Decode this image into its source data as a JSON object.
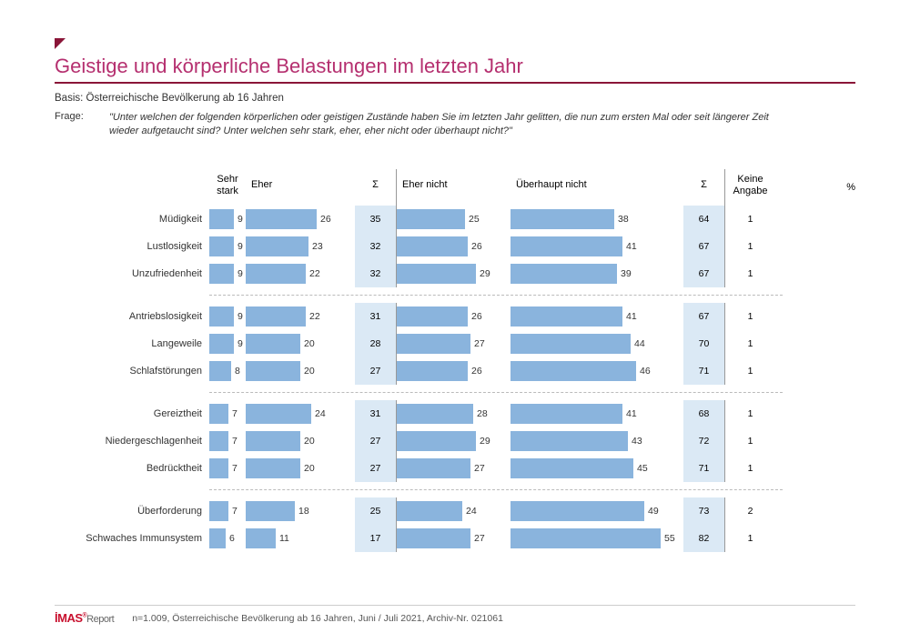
{
  "meta": {
    "title": "Geistige und körperliche Belastungen im letzten Jahr",
    "basis_label": "Basis:",
    "basis_text": "Österreichische Bevölkerung ab 16 Jahren",
    "frage_label": "Frage:",
    "frage_text": "\"Unter welchen der folgenden körperlichen oder geistigen Zustände haben Sie im letzten Jahr gelitten, die nun zum ersten Mal oder seit längerer Zeit wieder aufgetaucht sind? Unter welchen sehr stark, eher, eher nicht oder überhaupt nicht?\"",
    "pct_symbol": "%"
  },
  "columns": {
    "sehr_stark": "Sehr\nstark",
    "eher": "Eher",
    "sum": "Σ",
    "eher_nicht": "Eher nicht",
    "ueberhaupt_nicht": "Überhaupt nicht",
    "keine_angabe": "Keine\nAngabe"
  },
  "style": {
    "bar_color": "#8ab4dd",
    "sum_bg_color": "#dbe9f5",
    "title_color": "#b52f6f",
    "accent_color": "#8a1538",
    "text_color": "#333333",
    "bar_scale_left": 3.0,
    "bar_scale_right": 3.0,
    "max_sehr_stark": 10,
    "max_eher": 35,
    "max_eher_nicht": 35,
    "max_ueb_nicht": 60
  },
  "groups": [
    {
      "rows": [
        {
          "label": "Müdigkeit",
          "sehr_stark": 9,
          "eher": 26,
          "sum1": 35,
          "eher_nicht": 25,
          "ueb_nicht": 38,
          "sum2": 64,
          "keine": 1
        },
        {
          "label": "Lustlosigkeit",
          "sehr_stark": 9,
          "eher": 23,
          "sum1": 32,
          "eher_nicht": 26,
          "ueb_nicht": 41,
          "sum2": 67,
          "keine": 1
        },
        {
          "label": "Unzufriedenheit",
          "sehr_stark": 9,
          "eher": 22,
          "sum1": 32,
          "eher_nicht": 29,
          "ueb_nicht": 39,
          "sum2": 67,
          "keine": 1
        }
      ]
    },
    {
      "rows": [
        {
          "label": "Antriebslosigkeit",
          "sehr_stark": 9,
          "eher": 22,
          "sum1": 31,
          "eher_nicht": 26,
          "ueb_nicht": 41,
          "sum2": 67,
          "keine": 1
        },
        {
          "label": "Langeweile",
          "sehr_stark": 9,
          "eher": 20,
          "sum1": 28,
          "eher_nicht": 27,
          "ueb_nicht": 44,
          "sum2": 70,
          "keine": 1
        },
        {
          "label": "Schlafstörungen",
          "sehr_stark": 8,
          "eher": 20,
          "sum1": 27,
          "eher_nicht": 26,
          "ueb_nicht": 46,
          "sum2": 71,
          "keine": 1
        }
      ]
    },
    {
      "rows": [
        {
          "label": "Gereiztheit",
          "sehr_stark": 7,
          "eher": 24,
          "sum1": 31,
          "eher_nicht": 28,
          "ueb_nicht": 41,
          "sum2": 68,
          "keine": 1
        },
        {
          "label": "Niedergeschlagenheit",
          "sehr_stark": 7,
          "eher": 20,
          "sum1": 27,
          "eher_nicht": 29,
          "ueb_nicht": 43,
          "sum2": 72,
          "keine": 1
        },
        {
          "label": "Bedrücktheit",
          "sehr_stark": 7,
          "eher": 20,
          "sum1": 27,
          "eher_nicht": 27,
          "ueb_nicht": 45,
          "sum2": 71,
          "keine": 1
        }
      ]
    },
    {
      "rows": [
        {
          "label": "Überforderung",
          "sehr_stark": 7,
          "eher": 18,
          "sum1": 25,
          "eher_nicht": 24,
          "ueb_nicht": 49,
          "sum2": 73,
          "keine": 2
        },
        {
          "label": "Schwaches Immunsystem",
          "sehr_stark": 6,
          "eher": 11,
          "sum1": 17,
          "eher_nicht": 27,
          "ueb_nicht": 55,
          "sum2": 82,
          "keine": 1
        }
      ]
    }
  ],
  "footer": {
    "logo_main": "İMAS",
    "logo_sub": "Report",
    "text": "n=1.009, Österreichische Bevölkerung ab 16 Jahren, Juni / Juli 2021, Archiv-Nr. 021061"
  }
}
